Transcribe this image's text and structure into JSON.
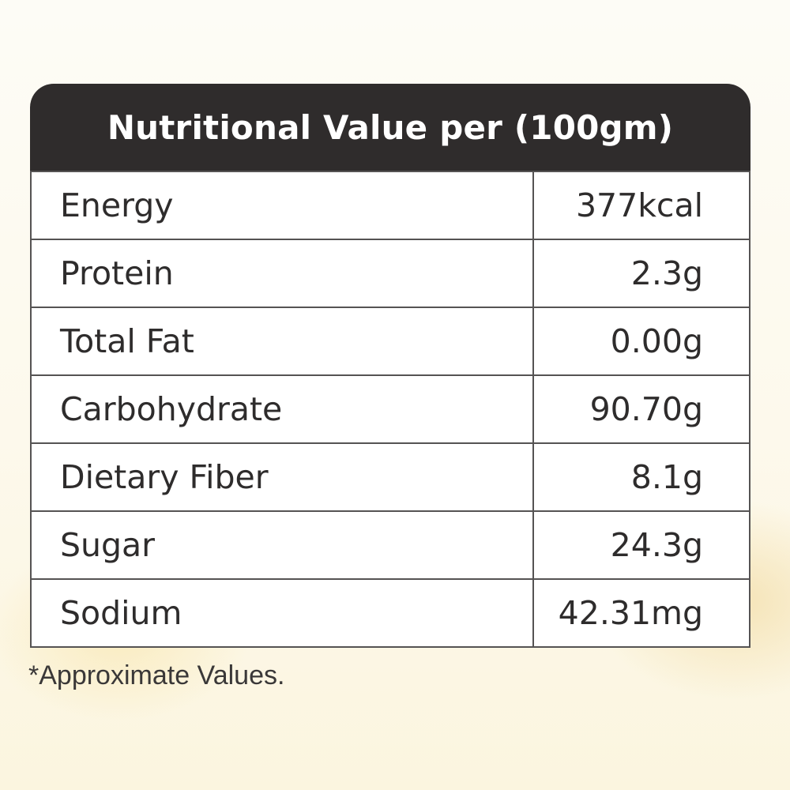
{
  "title": "Nutritional Value per (100gm)",
  "rows": [
    {
      "nutrient": "Energy",
      "value": "377kcal"
    },
    {
      "nutrient": "Protein",
      "value": "2.3g"
    },
    {
      "nutrient": "Total Fat",
      "value": "0.00g"
    },
    {
      "nutrient": "Carbohydrate",
      "value": "90.70g"
    },
    {
      "nutrient": "Dietary Fiber",
      "value": "8.1g"
    },
    {
      "nutrient": "Sugar",
      "value": "24.3g"
    },
    {
      "nutrient": "Sodium",
      "value": "42.31mg"
    }
  ],
  "footnote": "*Approximate Values.",
  "colors": {
    "header_bg": "#2f2c2c",
    "header_text": "#ffffff",
    "cell_bg": "#ffffff",
    "border": "#555353",
    "text": "#2e2c2c"
  }
}
